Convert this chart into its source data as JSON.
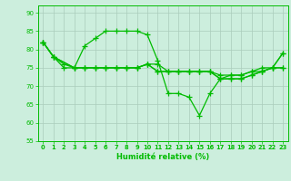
{
  "series": [
    {
      "x": [
        0,
        1,
        2,
        3,
        4,
        5,
        6,
        7,
        8,
        9,
        10,
        11,
        12,
        13,
        14,
        15,
        16,
        17,
        18,
        19,
        20,
        21,
        22,
        23
      ],
      "y": [
        82,
        78,
        75,
        75,
        75,
        75,
        75,
        75,
        75,
        75,
        76,
        76,
        74,
        74,
        74,
        74,
        74,
        73,
        73,
        73,
        74,
        74,
        75,
        75
      ]
    },
    {
      "x": [
        0,
        1,
        2,
        3,
        4,
        5,
        6,
        7,
        8,
        9,
        10,
        11,
        12,
        13,
        14,
        15,
        16,
        17,
        18,
        19,
        20,
        21,
        22,
        23
      ],
      "y": [
        82,
        78,
        76,
        75,
        81,
        83,
        85,
        85,
        85,
        85,
        84,
        77,
        68,
        68,
        67,
        62,
        68,
        72,
        73,
        73,
        74,
        75,
        75,
        79
      ]
    },
    {
      "x": [
        0,
        1,
        3,
        4,
        5,
        6,
        7,
        8,
        9,
        10,
        11,
        12,
        13,
        14,
        15,
        16,
        17,
        18,
        19,
        20,
        21,
        22,
        23
      ],
      "y": [
        82,
        78,
        75,
        75,
        75,
        75,
        75,
        75,
        75,
        76,
        74,
        74,
        74,
        74,
        74,
        74,
        72,
        72,
        72,
        73,
        74,
        75,
        75
      ]
    },
    {
      "x": [
        0,
        1,
        3,
        4,
        5,
        6,
        7,
        8,
        9,
        10,
        11,
        12,
        13,
        14,
        15,
        16,
        17,
        18,
        19,
        20,
        21,
        22,
        23
      ],
      "y": [
        82,
        78,
        75,
        75,
        75,
        75,
        75,
        75,
        75,
        76,
        74,
        74,
        74,
        74,
        74,
        74,
        72,
        72,
        72,
        73,
        74,
        75,
        79
      ]
    }
  ],
  "line_color": "#00bb00",
  "marker": "+",
  "markersize": 4,
  "linewidth": 0.9,
  "xlabel": "Humidité relative (%)",
  "xlim": [
    -0.5,
    23.5
  ],
  "ylim": [
    55,
    92
  ],
  "yticks": [
    55,
    60,
    65,
    70,
    75,
    80,
    85,
    90
  ],
  "xticks": [
    0,
    1,
    2,
    3,
    4,
    5,
    6,
    7,
    8,
    9,
    10,
    11,
    12,
    13,
    14,
    15,
    16,
    17,
    18,
    19,
    20,
    21,
    22,
    23
  ],
  "bg_color": "#cceedd",
  "grid_color": "#aaccbb"
}
